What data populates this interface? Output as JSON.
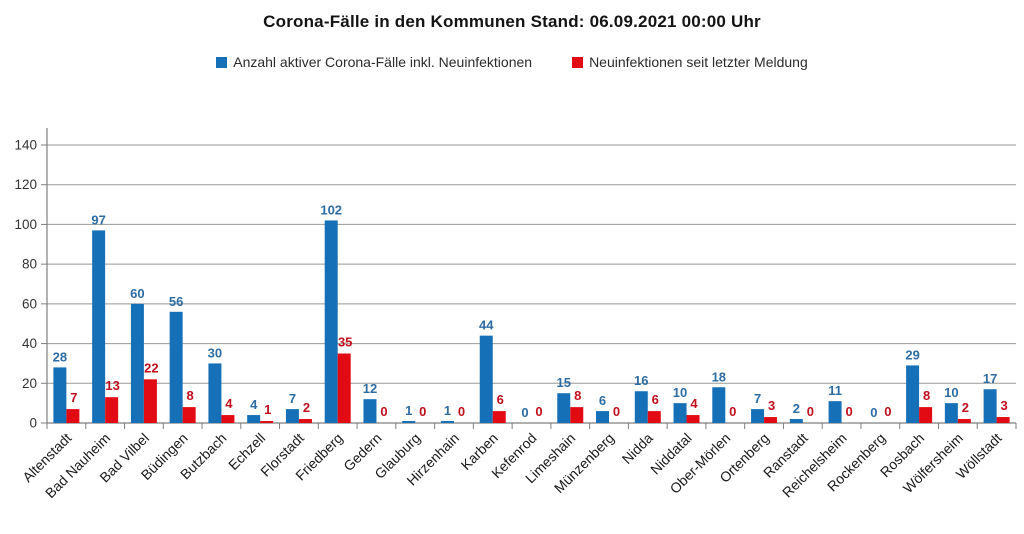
{
  "title": "Corona-Fälle in den Kommunen Stand: 06.09.2021 00:00 Uhr",
  "legend": [
    {
      "label": "Anzahl aktiver Corona-Fälle inkl. Neuinfektionen",
      "color": "#1570b8"
    },
    {
      "label": "Neuinfektionen seit letzter Meldung",
      "color": "#e30b13"
    }
  ],
  "chart_data": {
    "type": "bar",
    "title": "Corona-Fälle in den Kommunen Stand: 06.09.2021 00:00 Uhr",
    "categories": [
      "Altenstadt",
      "Bad Nauheim",
      "Bad Vilbel",
      "Büdingen",
      "Butzbach",
      "Echzell",
      "Florstadt",
      "Friedberg",
      "Gedern",
      "Glauburg",
      "Hirzenhain",
      "Karben",
      "Kefenrod",
      "Limeshain",
      "Münzenberg",
      "Nidda",
      "Niddatal",
      "Ober-Mörlen",
      "Ortenberg",
      "Ranstadt",
      "Reichelsheim",
      "Rockenberg",
      "Rosbach",
      "Wölfersheim",
      "Wöllstadt"
    ],
    "series": [
      {
        "name": "Anzahl aktiver Corona-Fälle inkl. Neuinfektionen",
        "color": "#1570b8",
        "label_color": "#2d6da3",
        "values": [
          28,
          97,
          60,
          56,
          30,
          4,
          7,
          102,
          12,
          1,
          1,
          44,
          0,
          15,
          6,
          16,
          10,
          18,
          7,
          2,
          11,
          0,
          29,
          10,
          17
        ]
      },
      {
        "name": "Neuinfektionen seit letzter Meldung",
        "color": "#e30b13",
        "label_color": "#c00f1d",
        "values": [
          7,
          13,
          22,
          8,
          4,
          1,
          2,
          35,
          0,
          0,
          0,
          6,
          0,
          8,
          0,
          6,
          4,
          0,
          3,
          0,
          0,
          0,
          8,
          2,
          3
        ]
      }
    ],
    "xlabel": "",
    "ylabel": "",
    "ylim": [
      0,
      140
    ],
    "yticks": [
      0,
      20,
      40,
      60,
      80,
      100,
      120,
      140
    ],
    "grid": true,
    "legend_position": "top",
    "grid_color": "#999999",
    "axis_color": "#7f7f7f",
    "tick_label_color": "#333333",
    "x_label_color": "#1a1a1a"
  }
}
